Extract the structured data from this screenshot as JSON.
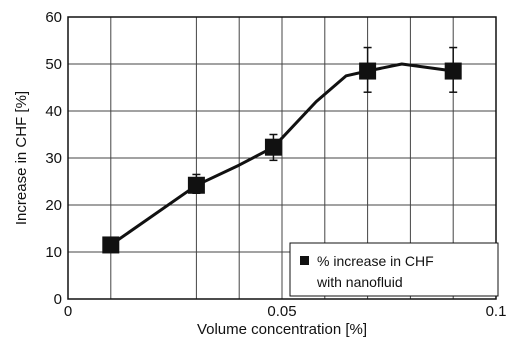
{
  "chart_data": {
    "type": "line",
    "xlabel": "Volume concentration [%]",
    "ylabel": "Increase in CHF [%]",
    "xlim": [
      0,
      0.1
    ],
    "ylim": [
      0,
      60
    ],
    "x_ticks": [
      {
        "value": 0,
        "label": "0"
      },
      {
        "value": 0.05,
        "label": "0.05"
      },
      {
        "value": 0.1,
        "label": "0.1"
      }
    ],
    "y_ticks": [
      {
        "value": 0,
        "label": "0"
      },
      {
        "value": 10,
        "label": "10"
      },
      {
        "value": 20,
        "label": "20"
      },
      {
        "value": 30,
        "label": "30"
      },
      {
        "value": 40,
        "label": "40"
      },
      {
        "value": 50,
        "label": "50"
      },
      {
        "value": 60,
        "label": "60"
      }
    ],
    "x_gridlines": [
      0.01,
      0.03,
      0.04,
      0.05,
      0.06,
      0.07,
      0.08,
      0.09
    ],
    "y_gridlines": [
      10,
      20,
      30,
      40,
      50
    ],
    "grid": true,
    "legend_position": "bottom-right",
    "series": [
      {
        "name": "% increase in CHF with nanofluid",
        "legend_lines": [
          "% increase in CHF",
          "with nanofluid"
        ],
        "points": [
          {
            "x": 0.01,
            "y": 11.5,
            "err_low": 11.5,
            "err_high": 11.5
          },
          {
            "x": 0.03,
            "y": 24.2,
            "err_low": 22.5,
            "err_high": 26.5
          },
          {
            "x": 0.048,
            "y": 32.3,
            "err_low": 29.5,
            "err_high": 35.0
          },
          {
            "x": 0.07,
            "y": 48.5,
            "err_low": 44.0,
            "err_high": 53.5
          },
          {
            "x": 0.09,
            "y": 48.5,
            "err_low": 44.0,
            "err_high": 53.5
          }
        ],
        "curve": [
          [
            0.01,
            11.5
          ],
          [
            0.03,
            24.2
          ],
          [
            0.04,
            28.5
          ],
          [
            0.048,
            32.3
          ],
          [
            0.058,
            42.0
          ],
          [
            0.065,
            47.5
          ],
          [
            0.07,
            48.5
          ],
          [
            0.078,
            50.0
          ],
          [
            0.09,
            48.5
          ]
        ]
      }
    ]
  }
}
